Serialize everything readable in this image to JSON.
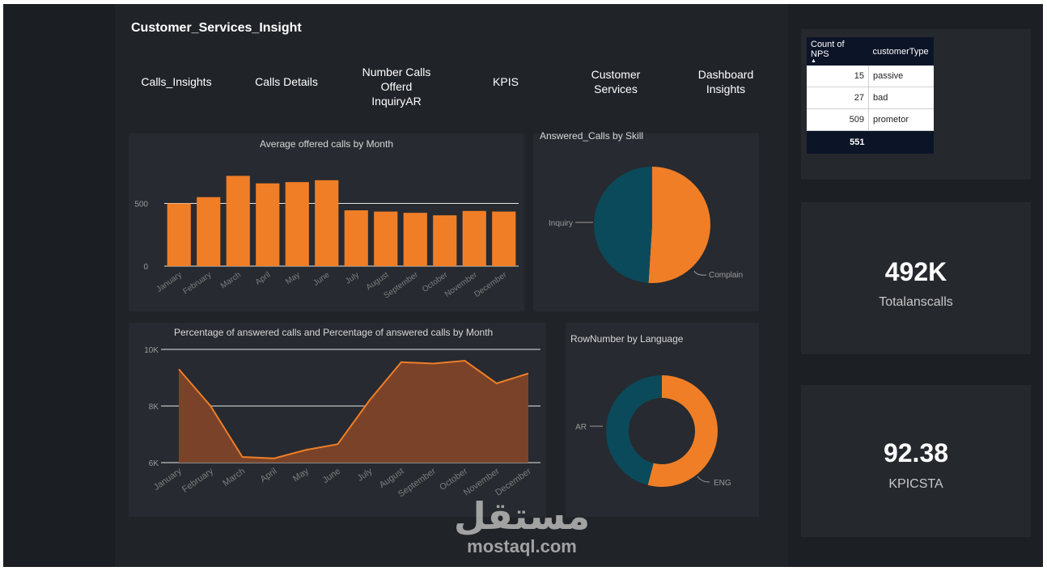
{
  "dashboard": {
    "title": "Customer_Services_Insight",
    "nav": [
      {
        "label": "Calls_Insights"
      },
      {
        "label": "Calls Details"
      },
      {
        "label": "Number Calls Offerd InquiryAR"
      },
      {
        "label": "KPIS"
      },
      {
        "label": "Customer Services"
      },
      {
        "label": "Dashboard Insights"
      }
    ]
  },
  "nps_table": {
    "headers": [
      "Count of NPS",
      "customerType"
    ],
    "rows": [
      {
        "count": "15",
        "type": "passive"
      },
      {
        "count": "27",
        "type": "bad"
      },
      {
        "count": "509",
        "type": "prometor"
      }
    ],
    "total": "551"
  },
  "kpis": {
    "total_ans_calls": {
      "value": "492K",
      "label": "Totalanscalls"
    },
    "kpicsta": {
      "value": "92.38",
      "label": "KPICSTA"
    }
  },
  "watermark": {
    "arabic": "مستقل",
    "latin": "mostaql.com"
  },
  "colors": {
    "orange": "#f07e26",
    "teal": "#0b4a5a",
    "background": "#202328",
    "panel": "#272a30",
    "table_header": "#0c1428"
  },
  "chart_data": [
    {
      "id": "offered_by_month",
      "type": "bar",
      "title": "Average offered calls  by Month",
      "categories": [
        "January",
        "February",
        "March",
        "April",
        "May",
        "June",
        "July",
        "August",
        "September",
        "October",
        "November",
        "December"
      ],
      "values": [
        500,
        550,
        720,
        660,
        670,
        685,
        445,
        435,
        425,
        405,
        440,
        435
      ],
      "ylim": [
        0,
        800
      ],
      "yticks": [
        "0",
        "500"
      ],
      "grid": true
    },
    {
      "id": "answered_by_skill",
      "type": "pie",
      "title": "Answered_Calls by Skill",
      "labels": [
        "Complain",
        "Inquiry"
      ],
      "values": [
        51,
        49
      ]
    },
    {
      "id": "pct_answered_by_month",
      "type": "area",
      "title": "Percentage of answered calls and Percentage of answered calls by Month",
      "categories": [
        "January",
        "February",
        "March",
        "April",
        "May",
        "June",
        "July",
        "August",
        "September",
        "October",
        "November",
        "December"
      ],
      "values": [
        9300,
        8000,
        6200,
        6150,
        6450,
        6650,
        8200,
        9550,
        9500,
        9600,
        8800,
        9150
      ],
      "ylim": [
        6000,
        10000
      ],
      "yticks": [
        "6K",
        "8K",
        "10K"
      ],
      "grid": true
    },
    {
      "id": "rownumber_by_language",
      "type": "pie",
      "title": "RowNumber by Language",
      "labels": [
        "ENG",
        "AR"
      ],
      "values": [
        54,
        46
      ]
    }
  ]
}
